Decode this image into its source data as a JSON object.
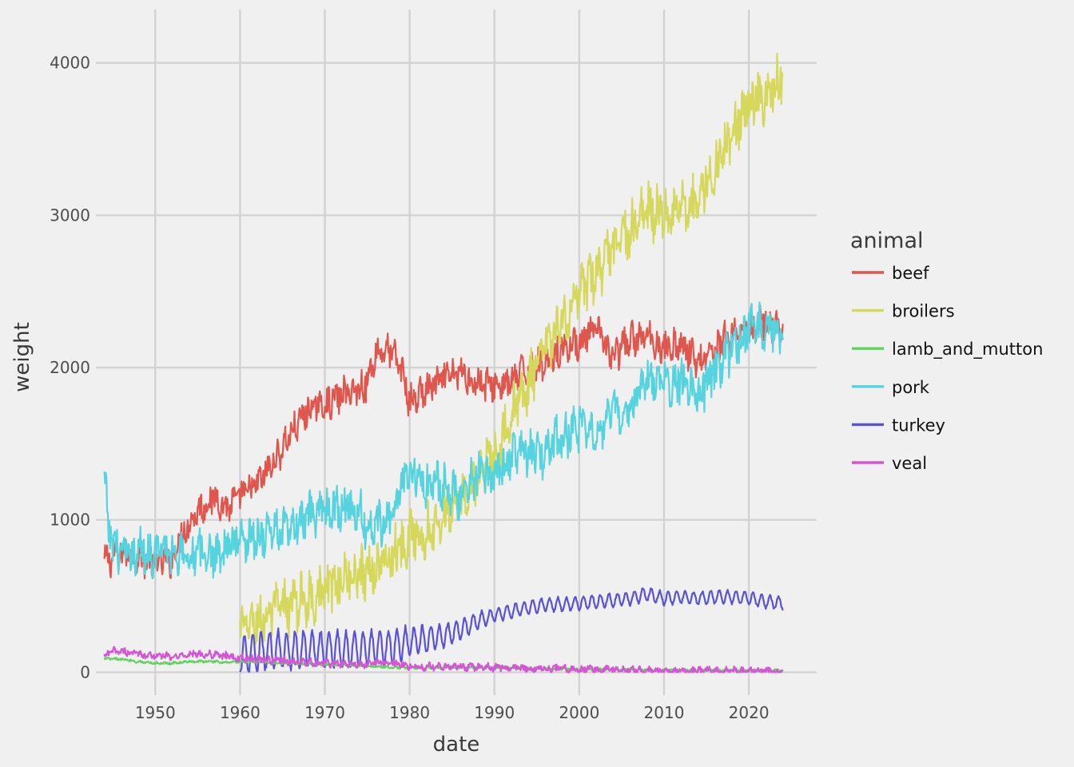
{
  "chart_data": {
    "type": "line",
    "xlabel": "date",
    "ylabel": "weight",
    "xlim": [
      1943,
      2028
    ],
    "ylim": [
      -150,
      4350
    ],
    "xticks": [
      1950,
      1960,
      1970,
      1980,
      1990,
      2000,
      2010,
      2020
    ],
    "yticks": [
      0,
      1000,
      2000,
      3000,
      4000
    ],
    "grid": true,
    "legend": {
      "title": "animal",
      "placement": "right"
    },
    "series": [
      {
        "name": "beef",
        "color": "#e0564d",
        "anchors": [
          [
            1944.0,
            720
          ],
          [
            1945.0,
            760
          ],
          [
            1946.0,
            780
          ],
          [
            1947.0,
            790
          ],
          [
            1948.0,
            760
          ],
          [
            1950.0,
            720
          ],
          [
            1952.0,
            740
          ],
          [
            1953.0,
            900
          ],
          [
            1955.0,
            1060
          ],
          [
            1957.0,
            1150
          ],
          [
            1958.5,
            1080
          ],
          [
            1960.0,
            1150
          ],
          [
            1962.0,
            1230
          ],
          [
            1964.0,
            1380
          ],
          [
            1966.0,
            1570
          ],
          [
            1968.0,
            1720
          ],
          [
            1970.0,
            1760
          ],
          [
            1972.0,
            1820
          ],
          [
            1974.0,
            1860
          ],
          [
            1975.0,
            1900
          ],
          [
            1976.0,
            2100
          ],
          [
            1977.5,
            2120
          ],
          [
            1979.0,
            2000
          ],
          [
            1980.0,
            1770
          ],
          [
            1982.0,
            1850
          ],
          [
            1984.0,
            1920
          ],
          [
            1986.0,
            1970
          ],
          [
            1988.0,
            1900
          ],
          [
            1990.0,
            1880
          ],
          [
            1992.0,
            1900
          ],
          [
            1994.0,
            2000
          ],
          [
            1996.0,
            2040
          ],
          [
            1998.0,
            2130
          ],
          [
            2000.0,
            2170
          ],
          [
            2002.0,
            2240
          ],
          [
            2004.0,
            2070
          ],
          [
            2006.0,
            2180
          ],
          [
            2008.0,
            2200
          ],
          [
            2010.0,
            2130
          ],
          [
            2012.0,
            2150
          ],
          [
            2014.0,
            2040
          ],
          [
            2016.0,
            2130
          ],
          [
            2018.0,
            2220
          ],
          [
            2020.0,
            2250
          ],
          [
            2022.0,
            2300
          ],
          [
            2024.0,
            2240
          ]
        ],
        "amplitude": 95,
        "gaps": [
          [
            1960.0,
            1960.0
          ]
        ]
      },
      {
        "name": "broilers",
        "color": "#d5d85a",
        "anchors": [
          [
            1960.0,
            270
          ],
          [
            1962.0,
            330
          ],
          [
            1964.0,
            390
          ],
          [
            1966.0,
            440
          ],
          [
            1968.0,
            480
          ],
          [
            1970.0,
            540
          ],
          [
            1972.0,
            610
          ],
          [
            1974.0,
            660
          ],
          [
            1976.0,
            680
          ],
          [
            1978.0,
            780
          ],
          [
            1980.0,
            890
          ],
          [
            1982.0,
            940
          ],
          [
            1984.0,
            1030
          ],
          [
            1986.0,
            1130
          ],
          [
            1988.0,
            1290
          ],
          [
            1990.0,
            1440
          ],
          [
            1992.0,
            1690
          ],
          [
            1994.0,
            1890
          ],
          [
            1996.0,
            2120
          ],
          [
            1998.0,
            2280
          ],
          [
            2000.0,
            2470
          ],
          [
            2002.0,
            2620
          ],
          [
            2004.0,
            2760
          ],
          [
            2006.0,
            2900
          ],
          [
            2008.0,
            3030
          ],
          [
            2010.0,
            3010
          ],
          [
            2012.0,
            3060
          ],
          [
            2014.0,
            3110
          ],
          [
            2016.0,
            3310
          ],
          [
            2018.0,
            3560
          ],
          [
            2020.0,
            3720
          ],
          [
            2022.0,
            3790
          ],
          [
            2024.0,
            3900
          ]
        ],
        "amplitude": 150
      },
      {
        "name": "lamb_and_mutton",
        "color": "#5ed55a",
        "anchors": [
          [
            1944.0,
            90
          ],
          [
            1946.0,
            85
          ],
          [
            1948.0,
            70
          ],
          [
            1950.0,
            60
          ],
          [
            1952.0,
            60
          ],
          [
            1954.0,
            70
          ],
          [
            1956.0,
            72
          ],
          [
            1958.0,
            65
          ],
          [
            1960.0,
            68
          ],
          [
            1962.0,
            70
          ],
          [
            1964.0,
            60
          ],
          [
            1966.0,
            58
          ],
          [
            1968.0,
            55
          ],
          [
            1970.0,
            50
          ],
          [
            1972.0,
            48
          ],
          [
            1975.0,
            40
          ],
          [
            1980.0,
            28
          ],
          [
            1985.0,
            32
          ],
          [
            1990.0,
            30
          ],
          [
            1995.0,
            25
          ],
          [
            2000.0,
            20
          ],
          [
            2005.0,
            17
          ],
          [
            2010.0,
            15
          ],
          [
            2015.0,
            13
          ],
          [
            2020.0,
            12
          ],
          [
            2024.0,
            12
          ]
        ],
        "amplitude": 7
      },
      {
        "name": "pork",
        "color": "#55d3de",
        "anchors": [
          [
            1944.0,
            1250
          ],
          [
            1944.5,
            950
          ],
          [
            1945.0,
            860
          ],
          [
            1946.0,
            780
          ],
          [
            1947.0,
            760
          ],
          [
            1948.0,
            800
          ],
          [
            1950.0,
            780
          ],
          [
            1952.0,
            800
          ],
          [
            1954.0,
            780
          ],
          [
            1956.0,
            770
          ],
          [
            1958.0,
            800
          ],
          [
            1960.0,
            880
          ],
          [
            1962.0,
            900
          ],
          [
            1964.0,
            930
          ],
          [
            1966.0,
            930
          ],
          [
            1968.0,
            1010
          ],
          [
            1970.0,
            1070
          ],
          [
            1972.0,
            1090
          ],
          [
            1974.0,
            1050
          ],
          [
            1975.0,
            940
          ],
          [
            1976.0,
            960
          ],
          [
            1978.0,
            1070
          ],
          [
            1980.0,
            1340
          ],
          [
            1982.0,
            1220
          ],
          [
            1984.0,
            1230
          ],
          [
            1986.0,
            1160
          ],
          [
            1988.0,
            1290
          ],
          [
            1990.0,
            1310
          ],
          [
            1992.0,
            1420
          ],
          [
            1994.0,
            1440
          ],
          [
            1996.0,
            1430
          ],
          [
            1998.0,
            1560
          ],
          [
            2000.0,
            1590
          ],
          [
            2002.0,
            1600
          ],
          [
            2004.0,
            1690
          ],
          [
            2006.0,
            1740
          ],
          [
            2008.0,
            1910
          ],
          [
            2010.0,
            1880
          ],
          [
            2012.0,
            1910
          ],
          [
            2014.0,
            1830
          ],
          [
            2016.0,
            1980
          ],
          [
            2018.0,
            2120
          ],
          [
            2020.0,
            2270
          ],
          [
            2022.0,
            2240
          ],
          [
            2024.0,
            2250
          ]
        ],
        "amplitude": 130
      },
      {
        "name": "turkey",
        "color": "#5a51d5",
        "anchors": [
          [
            1960.0,
            90
          ],
          [
            1962.0,
            120
          ],
          [
            1964.0,
            130
          ],
          [
            1966.0,
            140
          ],
          [
            1968.0,
            140
          ],
          [
            1970.0,
            140
          ],
          [
            1972.0,
            140
          ],
          [
            1974.0,
            140
          ],
          [
            1976.0,
            150
          ],
          [
            1978.0,
            160
          ],
          [
            1980.0,
            190
          ],
          [
            1982.0,
            210
          ],
          [
            1984.0,
            230
          ],
          [
            1986.0,
            270
          ],
          [
            1988.0,
            330
          ],
          [
            1990.0,
            370
          ],
          [
            1992.0,
            400
          ],
          [
            1994.0,
            420
          ],
          [
            1996.0,
            440
          ],
          [
            1998.0,
            440
          ],
          [
            2000.0,
            450
          ],
          [
            2002.0,
            460
          ],
          [
            2004.0,
            470
          ],
          [
            2006.0,
            480
          ],
          [
            2008.0,
            510
          ],
          [
            2010.0,
            480
          ],
          [
            2012.0,
            490
          ],
          [
            2014.0,
            480
          ],
          [
            2016.0,
            490
          ],
          [
            2018.0,
            490
          ],
          [
            2020.0,
            480
          ],
          [
            2022.0,
            460
          ],
          [
            2024.0,
            450
          ]
        ],
        "amplitude_schedule": [
          [
            1960.0,
            125
          ],
          [
            1978.0,
            110
          ],
          [
            1985.0,
            70
          ],
          [
            1990.0,
            45
          ],
          [
            2024.0,
            40
          ]
        ]
      },
      {
        "name": "veal",
        "color": "#d655d6",
        "anchors": [
          [
            1944.0,
            100
          ],
          [
            1945.0,
            140
          ],
          [
            1946.0,
            140
          ],
          [
            1948.0,
            120
          ],
          [
            1950.0,
            110
          ],
          [
            1952.0,
            100
          ],
          [
            1954.0,
            120
          ],
          [
            1956.0,
            120
          ],
          [
            1958.0,
            110
          ],
          [
            1960.0,
            90
          ],
          [
            1962.0,
            85
          ],
          [
            1964.0,
            80
          ],
          [
            1966.0,
            70
          ],
          [
            1968.0,
            65
          ],
          [
            1970.0,
            60
          ],
          [
            1972.0,
            55
          ],
          [
            1974.0,
            50
          ],
          [
            1976.0,
            65
          ],
          [
            1978.0,
            55
          ],
          [
            1980.0,
            40
          ],
          [
            1985.0,
            35
          ],
          [
            1990.0,
            30
          ],
          [
            1995.0,
            25
          ],
          [
            2000.0,
            20
          ],
          [
            2005.0,
            15
          ],
          [
            2010.0,
            12
          ],
          [
            2015.0,
            10
          ],
          [
            2020.0,
            8
          ],
          [
            2024.0,
            8
          ]
        ],
        "amplitude": 22
      }
    ]
  }
}
